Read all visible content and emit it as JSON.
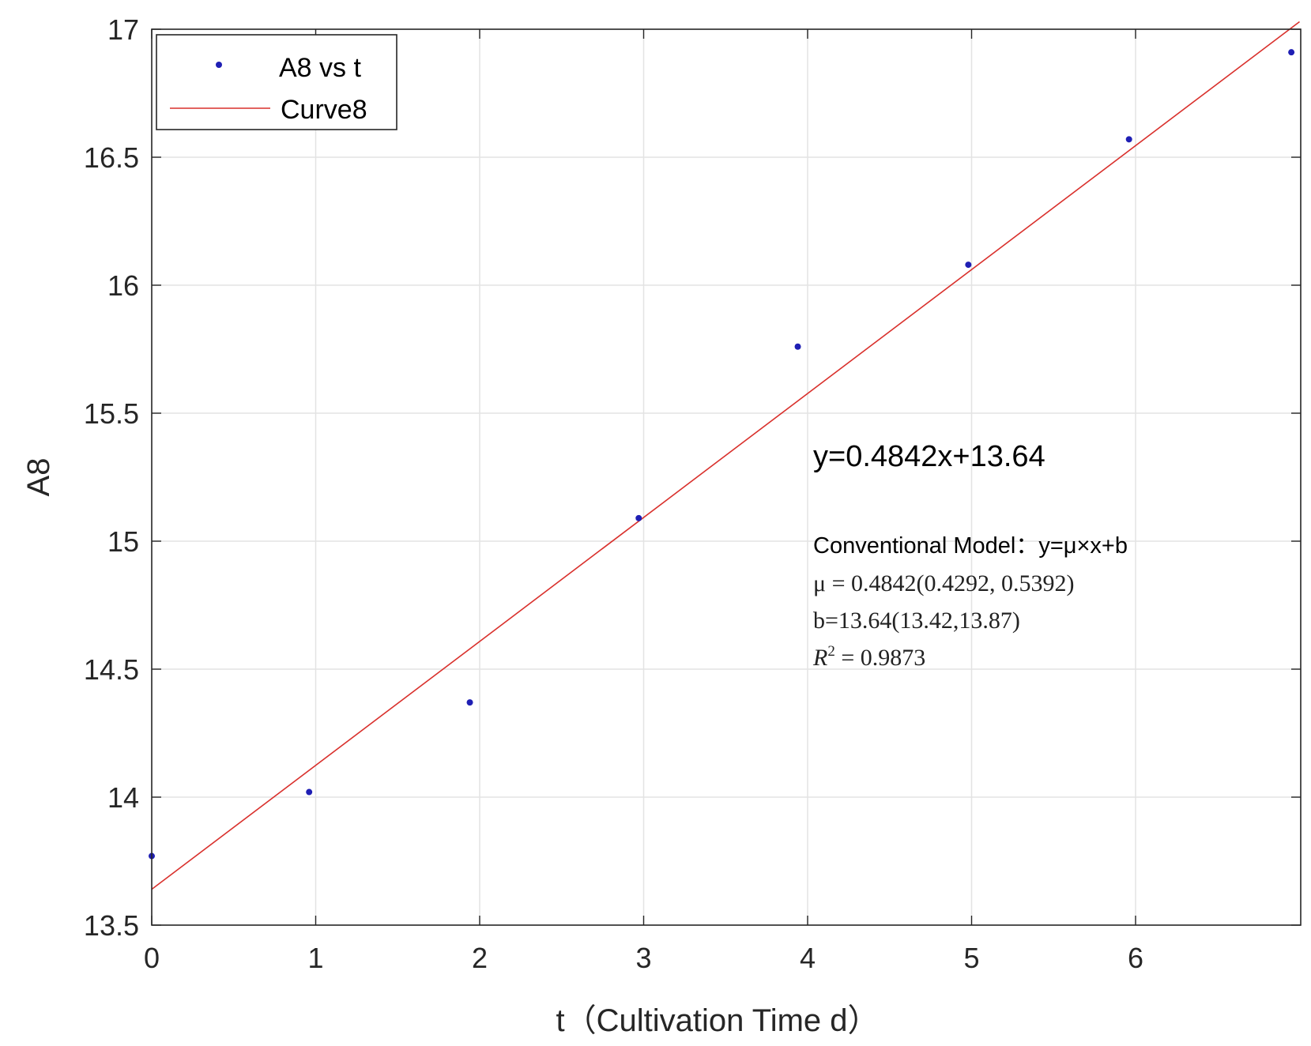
{
  "chart_data": {
    "type": "scatter",
    "title": "",
    "xlabel": "t（Cultivation Time d）",
    "ylabel": "A8",
    "xlim": [
      0,
      7
    ],
    "ylim": [
      13.5,
      17
    ],
    "xticks": [
      "0",
      "1",
      "2",
      "3",
      "4",
      "5",
      "6"
    ],
    "yticks": [
      "13.5",
      "14",
      "14.5",
      "15",
      "15.5",
      "16",
      "16.5",
      "17"
    ],
    "grid": true,
    "legend_position": "top-left",
    "series": [
      {
        "name": "A8 vs t",
        "kind": "points",
        "color": "#1f1fb4",
        "x": [
          0,
          0.96,
          1.94,
          2.97,
          3.94,
          4.98,
          5.96,
          6.95
        ],
        "y": [
          13.77,
          14.02,
          14.37,
          15.09,
          15.76,
          16.08,
          16.57,
          16.91
        ]
      },
      {
        "name": "Curve8",
        "kind": "line",
        "color": "#d9302c",
        "slope": 0.4842,
        "intercept": 13.64,
        "x": [
          0,
          7
        ],
        "y": [
          13.64,
          17.0294
        ]
      }
    ],
    "annotations": {
      "equation": "y=0.4842x+13.64",
      "model": "Conventional Model：y=μ×x+b",
      "mu": "μ = 0.4842(0.4292, 0.5392)",
      "b": "b=13.64(13.42,13.87)",
      "r2_symbol": "R",
      "r2_exponent": "2",
      "r2_value": " = 0.9873"
    }
  }
}
